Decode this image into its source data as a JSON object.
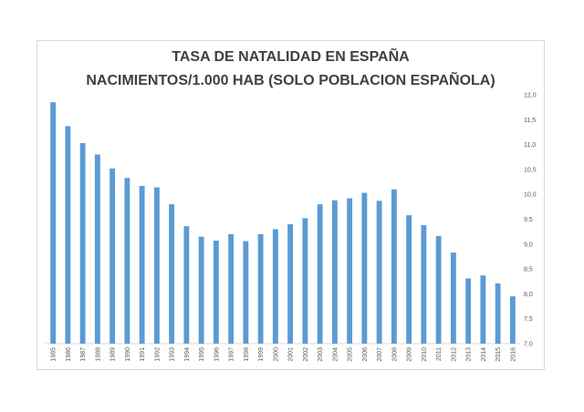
{
  "chart_data": {
    "type": "bar",
    "title_line1": "TASA DE NATALIDAD EN ESPAÑA",
    "title_line2": "NACIMIENTOS/1.000 HAB (SOLO POBLACION ESPAÑOLA)",
    "categories": [
      "1985",
      "1986",
      "1987",
      "1988",
      "1989",
      "1990",
      "1991",
      "1992",
      "1993",
      "1994",
      "1995",
      "1996",
      "1997",
      "1998",
      "1999",
      "2000",
      "2001",
      "2002",
      "2003",
      "2004",
      "2005",
      "2006",
      "2007",
      "2008",
      "2009",
      "2010",
      "2011",
      "2012",
      "2013",
      "2014",
      "2015",
      "2016"
    ],
    "values": [
      11.85,
      11.37,
      11.03,
      10.8,
      10.52,
      10.33,
      10.17,
      10.14,
      9.8,
      9.36,
      9.15,
      9.07,
      9.2,
      9.06,
      9.2,
      9.3,
      9.4,
      9.52,
      9.8,
      9.88,
      9.92,
      10.03,
      9.87,
      10.1,
      9.58,
      9.38,
      9.16,
      8.83,
      8.31,
      8.37,
      8.21,
      7.95
    ],
    "ylim": [
      7.0,
      12.0
    ],
    "y_ticks": [
      "7,0",
      "7,5",
      "8,0",
      "8,5",
      "9,0",
      "9,5",
      "10,0",
      "10,5",
      "11,0",
      "11,5",
      "12,0"
    ],
    "y_tick_values": [
      7.0,
      7.5,
      8.0,
      8.5,
      9.0,
      9.5,
      10.0,
      10.5,
      11.0,
      11.5,
      12.0
    ],
    "y_axis_side": "right",
    "grid": false,
    "bar_color": "#5b9bd5",
    "xlabel": "",
    "ylabel": ""
  }
}
